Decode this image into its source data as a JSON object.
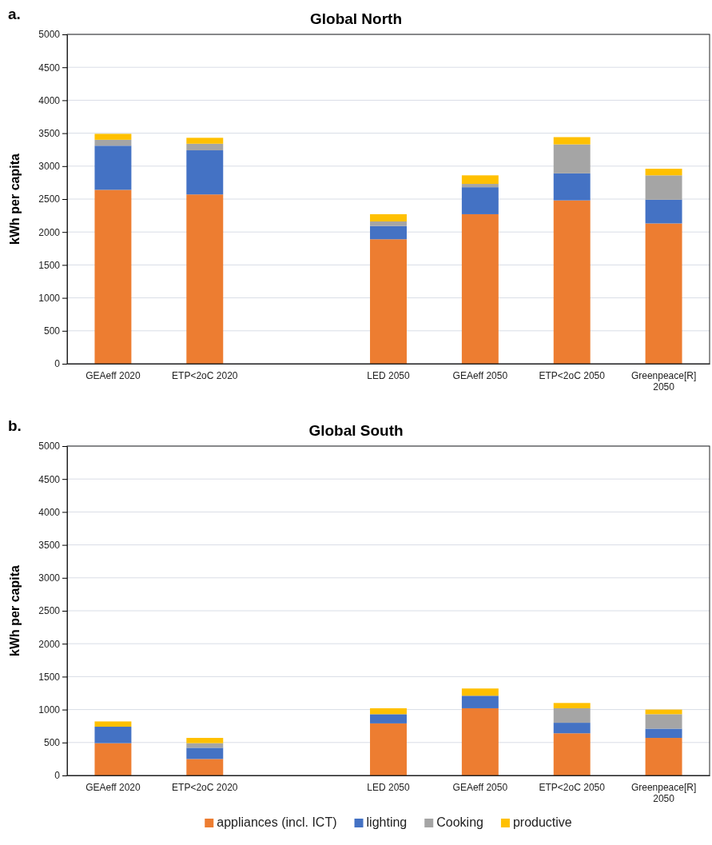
{
  "chart_data": [
    {
      "type": "bar",
      "title": "Global North",
      "ylabel": "kWh per capita",
      "annotations": [
        "a."
      ],
      "stacked": true,
      "grid": "y",
      "legend": false,
      "categories": [
        "GEAeff 2020",
        "ETP<2oC 2020",
        null,
        "LED 2050",
        "GEAeff 2050",
        "ETP<2oC 2050",
        "Greenpeace[R] 2050"
      ],
      "ylim": [
        0,
        5000
      ],
      "yticks": [
        0,
        500,
        1000,
        1500,
        2000,
        2500,
        3000,
        3500,
        4000,
        4500,
        5000
      ],
      "series": [
        {
          "color": "#ed7d31",
          "values": [
            2640,
            2570,
            null,
            1890,
            2270,
            2480,
            2130
          ]
        },
        {
          "color": "#4472c4",
          "values": [
            670,
            670,
            null,
            200,
            410,
            410,
            360
          ]
        },
        {
          "color": "#a5a5a5",
          "values": [
            90,
            100,
            null,
            70,
            50,
            440,
            370
          ]
        },
        {
          "color": "#ffc000",
          "values": [
            90,
            90,
            null,
            110,
            130,
            110,
            100
          ]
        }
      ]
    },
    {
      "type": "bar",
      "title": "Global South",
      "ylabel": "kWh per capita",
      "annotations": [
        "b."
      ],
      "stacked": true,
      "grid": "y",
      "legend": "bottom",
      "categories": [
        "GEAeff 2020",
        "ETP<2oC 2020",
        null,
        "LED 2050",
        "GEAeff 2050",
        "ETP<2oC 2050",
        "Greenpeace[R] 2050"
      ],
      "ylim": [
        0,
        5000
      ],
      "yticks": [
        0,
        500,
        1000,
        1500,
        2000,
        2500,
        3000,
        3500,
        4000,
        4500,
        5000
      ],
      "series": [
        {
          "name": "appliances (incl. ICT)",
          "color": "#ed7d31",
          "values": [
            490,
            250,
            null,
            790,
            1020,
            640,
            570
          ]
        },
        {
          "name": "lighting",
          "color": "#4472c4",
          "values": [
            250,
            170,
            null,
            140,
            190,
            160,
            140
          ]
        },
        {
          "name": "Cooking",
          "color": "#a5a5a5",
          "values": [
            0,
            70,
            null,
            null,
            null,
            220,
            220
          ]
        },
        {
          "name": "productive",
          "color": "#ffc000",
          "values": [
            80,
            80,
            null,
            90,
            110,
            80,
            70
          ]
        }
      ]
    }
  ]
}
